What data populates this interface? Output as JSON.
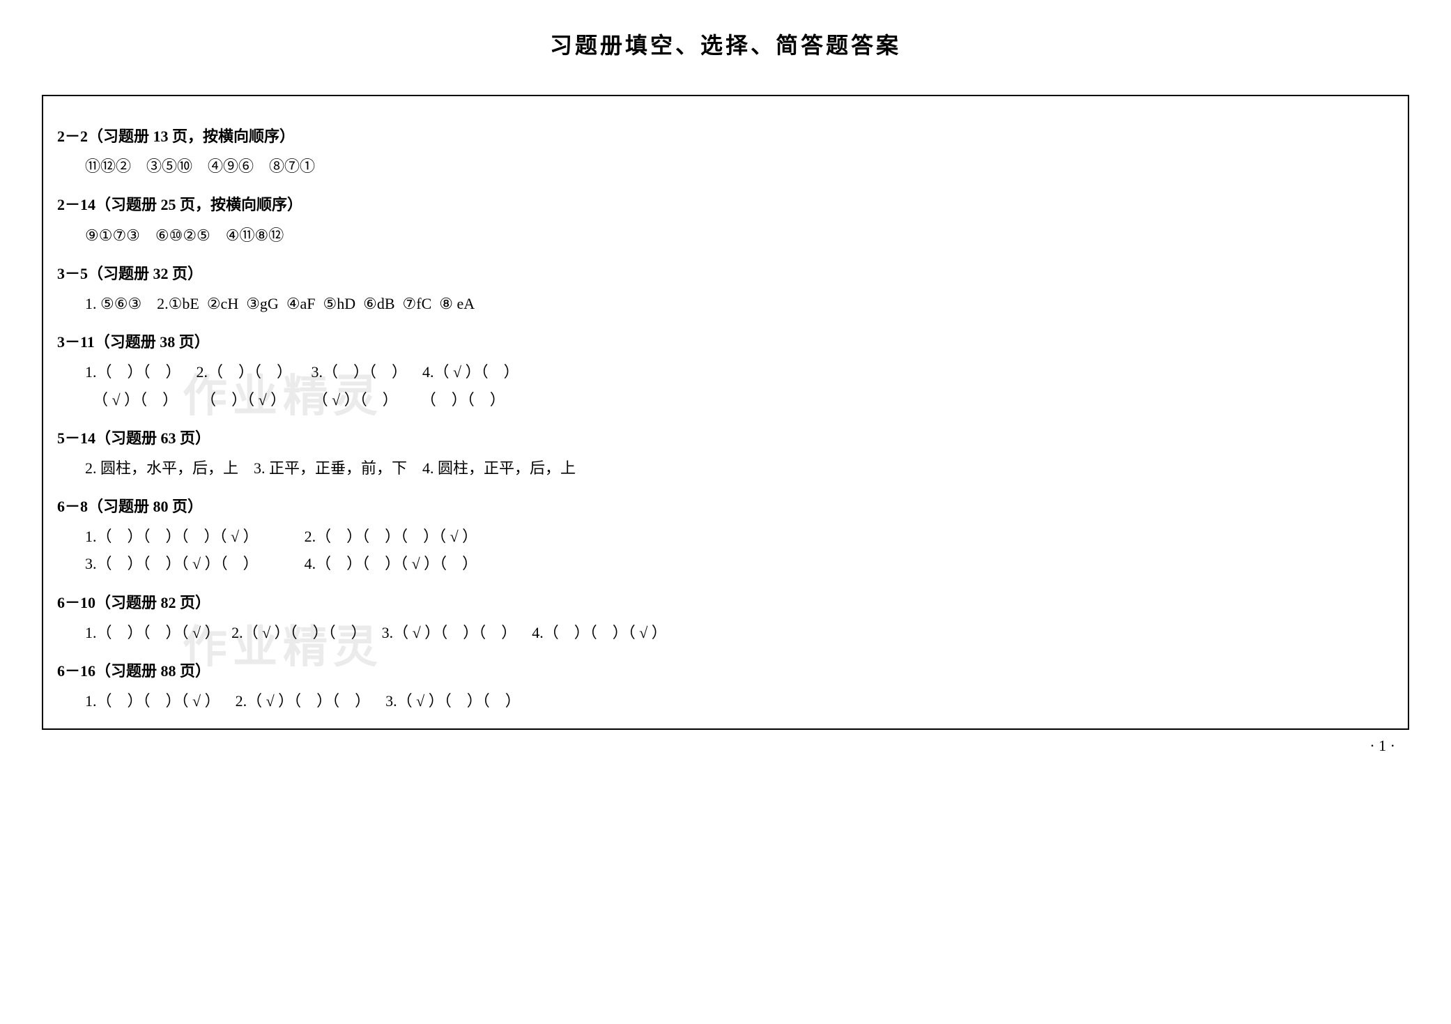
{
  "title": "习题册填空、选择、简答题答案",
  "page_number": "· 1 ·",
  "watermark_text": "作业精灵",
  "sections": [
    {
      "header": "2－2（习题册 13 页，按横向顺序）",
      "lines": [
        "⑪⑫②    ③⑤⑩    ④⑨⑥    ⑧⑦①"
      ]
    },
    {
      "header": "2－14（习题册 25 页，按横向顺序）",
      "lines": [
        "⑨①⑦③    ⑥⑩②⑤    ④⑪⑧⑫"
      ]
    },
    {
      "header": "3－5（习题册 32 页）",
      "lines": [
        "1. ⑤⑥③    2.①bE  ②cH  ③gG  ④aF  ⑤hD  ⑥dB  ⑦fC  ⑧ eA"
      ]
    },
    {
      "header": "3－11（习题册 38 页）",
      "lines": [
        "1.（    ）（    ）    2.（    ）（    ）     3.（    ）（    ）    4.（ √ ）（    ）",
        "  （ √ ）（    ）      （    ）（ √ ）       （ √ ）（    ）      （    ）（    ）"
      ]
    },
    {
      "header": "5－14（习题册 63 页）",
      "lines": [
        "2. 圆柱，水平，后，上    3. 正平，正垂，前，下    4. 圆柱，正平，后，上"
      ]
    },
    {
      "header": "6－8（习题册 80 页）",
      "lines": [
        "1.（    ）（    ）（    ）（ √ ）            2.（    ）（    ）（    ）（ √ ）",
        "3.（    ）（    ）（ √ ）（    ）            4.（    ）（    ）（ √ ）（    ）"
      ]
    },
    {
      "header": "6－10（习题册 82 页）",
      "lines": [
        "1.（    ）（    ）（ √ ）   2.（ √ ）（    ）（    ）    3.（ √ ）（    ）（    ）    4.（    ）（    ）（ √ ）"
      ]
    },
    {
      "header": "6－16（习题册 88 页）",
      "lines": [
        "1.（    ）（    ）（ √ ）    2.（ √ ）（    ）（    ）    3.（ √ ）（    ）（    ）"
      ]
    }
  ]
}
